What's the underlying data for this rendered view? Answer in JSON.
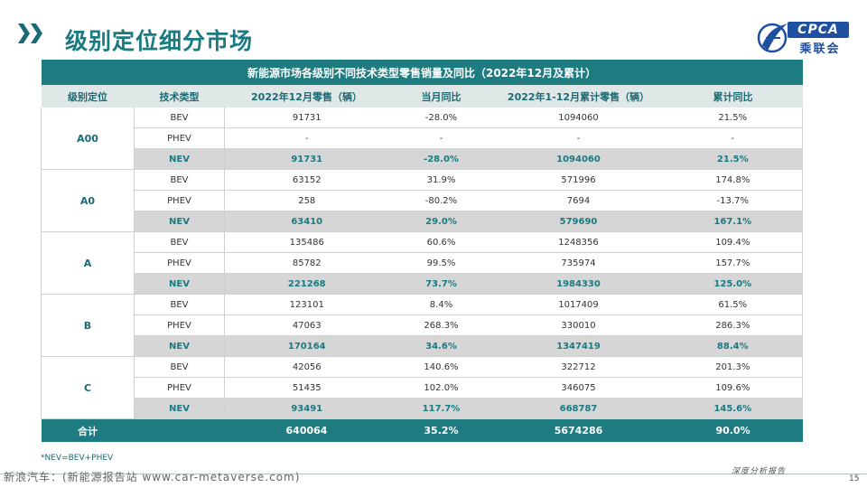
{
  "page": {
    "title": "级别定位细分市场",
    "footnote": "*NEV=BEV+PHEV",
    "watermark": "新浪汽车：(新能源报告站 www.car-metaverse.com)",
    "slogan": "深度分析报告",
    "page_number": "15"
  },
  "logo": {
    "top_text": "CPCA",
    "bottom_text": "乘联会",
    "primary_color": "#1f4fa0"
  },
  "colors": {
    "teal": "#1e7c80",
    "title_teal": "#1a7a82",
    "nev_fill": "#d6d6d6"
  },
  "table": {
    "title": "新能源市场各级别不同技术类型零售销量及同比（2022年12月及累计）",
    "headers": [
      "级别定位",
      "技术类型",
      "2022年12月零售（辆）",
      "当月同比",
      "2022年1-12月累计零售（辆）",
      "累计同比"
    ],
    "groups": [
      {
        "level": "A00",
        "rows": [
          {
            "tech": "BEV",
            "dec": "91731",
            "dec_yoy": "-28.0%",
            "ytd": "1094060",
            "ytd_yoy": "21.5%"
          },
          {
            "tech": "PHEV",
            "dec": "-",
            "dec_yoy": "-",
            "ytd": "-",
            "ytd_yoy": "-"
          },
          {
            "tech": "NEV",
            "dec": "91731",
            "dec_yoy": "-28.0%",
            "ytd": "1094060",
            "ytd_yoy": "21.5%"
          }
        ]
      },
      {
        "level": "A0",
        "rows": [
          {
            "tech": "BEV",
            "dec": "63152",
            "dec_yoy": "31.9%",
            "ytd": "571996",
            "ytd_yoy": "174.8%"
          },
          {
            "tech": "PHEV",
            "dec": "258",
            "dec_yoy": "-80.2%",
            "ytd": "7694",
            "ytd_yoy": "-13.7%"
          },
          {
            "tech": "NEV",
            "dec": "63410",
            "dec_yoy": "29.0%",
            "ytd": "579690",
            "ytd_yoy": "167.1%"
          }
        ]
      },
      {
        "level": "A",
        "rows": [
          {
            "tech": "BEV",
            "dec": "135486",
            "dec_yoy": "60.6%",
            "ytd": "1248356",
            "ytd_yoy": "109.4%"
          },
          {
            "tech": "PHEV",
            "dec": "85782",
            "dec_yoy": "99.5%",
            "ytd": "735974",
            "ytd_yoy": "157.7%"
          },
          {
            "tech": "NEV",
            "dec": "221268",
            "dec_yoy": "73.7%",
            "ytd": "1984330",
            "ytd_yoy": "125.0%"
          }
        ]
      },
      {
        "level": "B",
        "rows": [
          {
            "tech": "BEV",
            "dec": "123101",
            "dec_yoy": "8.4%",
            "ytd": "1017409",
            "ytd_yoy": "61.5%"
          },
          {
            "tech": "PHEV",
            "dec": "47063",
            "dec_yoy": "268.3%",
            "ytd": "330010",
            "ytd_yoy": "286.3%"
          },
          {
            "tech": "NEV",
            "dec": "170164",
            "dec_yoy": "34.6%",
            "ytd": "1347419",
            "ytd_yoy": "88.4%"
          }
        ]
      },
      {
        "level": "C",
        "rows": [
          {
            "tech": "BEV",
            "dec": "42056",
            "dec_yoy": "140.6%",
            "ytd": "322712",
            "ytd_yoy": "201.3%"
          },
          {
            "tech": "PHEV",
            "dec": "51435",
            "dec_yoy": "102.0%",
            "ytd": "346075",
            "ytd_yoy": "109.6%"
          },
          {
            "tech": "NEV",
            "dec": "93491",
            "dec_yoy": "117.7%",
            "ytd": "668787",
            "ytd_yoy": "145.6%"
          }
        ]
      }
    ],
    "total": {
      "label": "合计",
      "dec": "640064",
      "dec_yoy": "35.2%",
      "ytd": "5674286",
      "ytd_yoy": "90.0%"
    }
  }
}
